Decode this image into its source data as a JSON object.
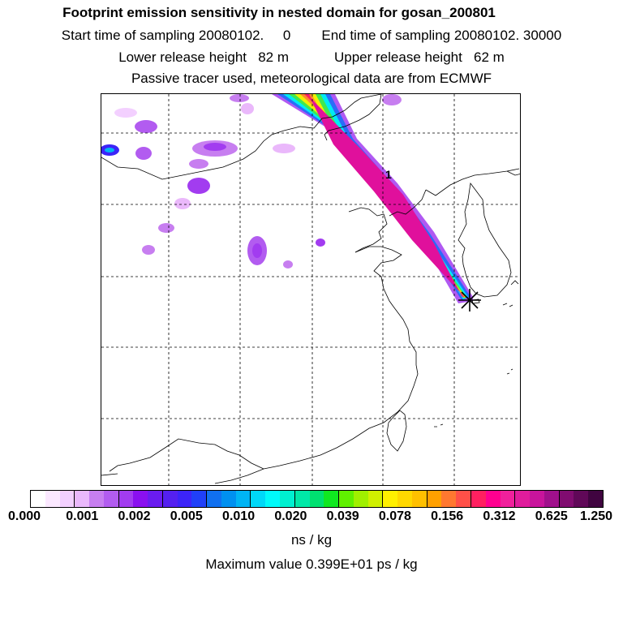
{
  "header": {
    "title": "Footprint emission sensitivity in nested domain for gosan_200801",
    "start_label": "Start time of sampling 20080102.     0",
    "end_label": "End time of sampling 20080102. 30000",
    "lower_label": "Lower release height   82 m",
    "upper_label": "Upper release height   62 m",
    "tracer_label": "Passive tracer used, meteorological data are from ECMWF"
  },
  "map": {
    "annotation": "1",
    "receptor_marker": "star-cross"
  },
  "legend": {
    "ticks": [
      "0.000",
      "0.001",
      "0.002",
      "0.005",
      "0.010",
      "0.020",
      "0.039",
      "0.078",
      "0.156",
      "0.312",
      "0.625",
      "1.250"
    ],
    "units": "ns / kg",
    "max_value": "Maximum value  0.399E+01 ps / kg",
    "colors": [
      "#ffffff",
      "#fbe8ff",
      "#f3d0ff",
      "#eab8fb",
      "#c77ef0",
      "#b25cf0",
      "#a23cf0",
      "#8a10f0",
      "#6a1cf0",
      "#5420f0",
      "#3c24f8",
      "#2040f8",
      "#1070f0",
      "#0090f0",
      "#00b4f4",
      "#00d8f8",
      "#00fafa",
      "#00f0d0",
      "#00e8a8",
      "#00e070",
      "#10e820",
      "#60f000",
      "#a0f000",
      "#d0f000",
      "#fff000",
      "#ffd800",
      "#ffc000",
      "#ffa000",
      "#ff7830",
      "#ff5048",
      "#ff2060",
      "#ff0090",
      "#f0209c",
      "#e01c9c",
      "#c8149c",
      "#a0108c",
      "#800c70",
      "#600858",
      "#400440"
    ]
  }
}
